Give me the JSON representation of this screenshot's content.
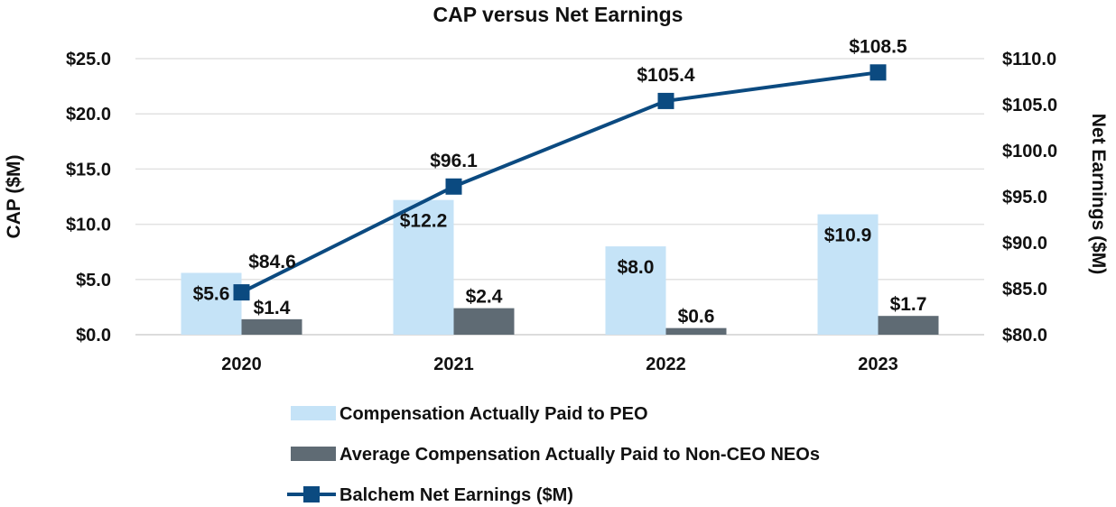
{
  "chart_data": {
    "type": "bar+line",
    "title": "CAP versus Net Earnings",
    "ylabel": "CAP ($M)",
    "y2label": "Net Earnings ($M)",
    "categories": [
      "2020",
      "2021",
      "2022",
      "2023"
    ],
    "ylim": [
      0,
      25
    ],
    "y2lim": [
      80,
      110
    ],
    "yticks": [
      "$0.0",
      "$5.0",
      "$10.0",
      "$15.0",
      "$20.0",
      "$25.0"
    ],
    "y2ticks": [
      "$80.0",
      "$85.0",
      "$90.0",
      "$95.0",
      "$100.0",
      "$105.0",
      "$110.0"
    ],
    "grid": true,
    "legend_placement": "bottom",
    "series": [
      {
        "name": "Compensation Actually Paid to PEO",
        "type": "bar",
        "axis": "left",
        "color": "#c5e3f7",
        "values": [
          5.6,
          12.2,
          8.0,
          10.9
        ],
        "labels": [
          "$5.6",
          "$12.2",
          "$8.0",
          "$10.9"
        ]
      },
      {
        "name": "Average Compensation Actually Paid to Non-CEO NEOs",
        "type": "bar",
        "axis": "left",
        "color": "#5f6b74",
        "values": [
          1.4,
          2.4,
          0.6,
          1.7
        ],
        "labels": [
          "$1.4",
          "$2.4",
          "$0.6",
          "$1.7"
        ]
      },
      {
        "name": "Balchem Net Earnings ($M)",
        "type": "line",
        "axis": "right",
        "color": "#0b4a80",
        "values": [
          84.6,
          96.1,
          105.4,
          108.5
        ],
        "labels": [
          "$84.6",
          "$96.1",
          "$105.4",
          "$108.5"
        ]
      }
    ]
  }
}
